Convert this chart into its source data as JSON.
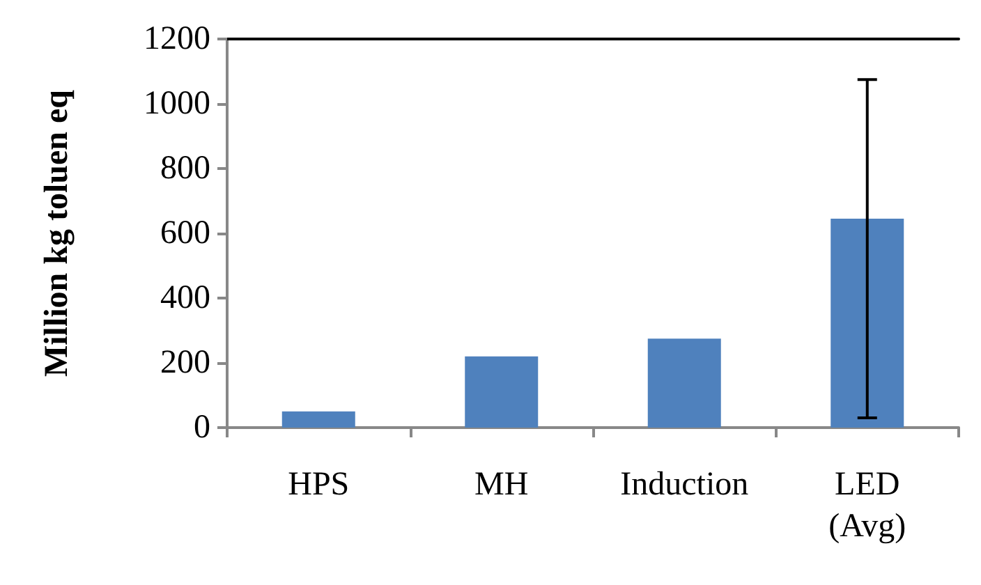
{
  "chart_data": {
    "type": "bar",
    "ylabel": "Million kg toluen eq",
    "categories": [
      "HPS",
      "MH",
      "Induction",
      "LED\n(Avg)"
    ],
    "values": [
      50,
      220,
      275,
      645
    ],
    "errors": [
      null,
      null,
      null,
      [
        30,
        1075
      ]
    ],
    "color": "#4f81bd",
    "ylim": [
      0,
      1200
    ],
    "yticks": [
      0,
      200,
      400,
      600,
      800,
      1000,
      1200
    ],
    "grid": false
  }
}
